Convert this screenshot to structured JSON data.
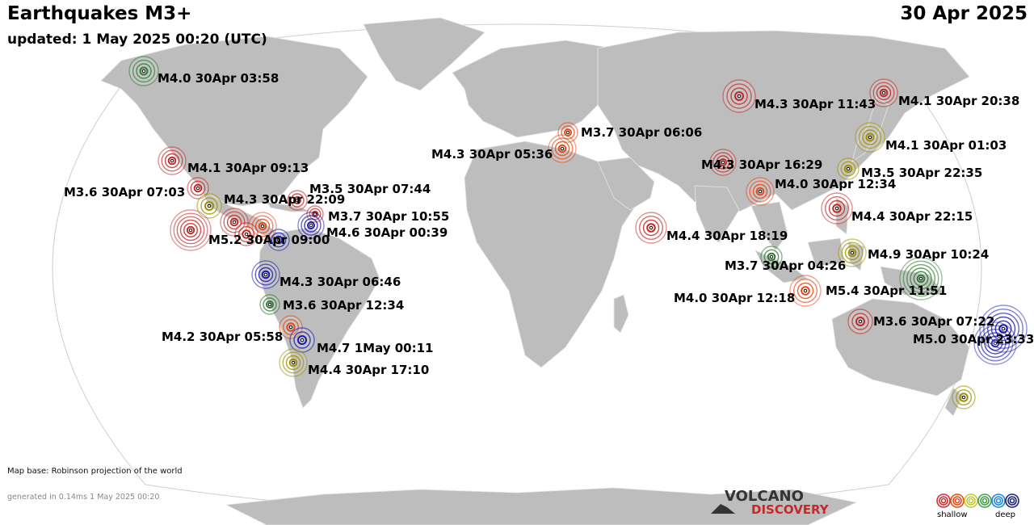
{
  "header": {
    "title": "Earthquakes M3+",
    "updated": "updated:  1 May 2025 00:20 (UTC)",
    "date": "30 Apr 2025"
  },
  "footer": {
    "map_base_note": "Map base: Robinson projection of the world",
    "generated": "generated in 0.14ms  1 May 2025 00:20"
  },
  "logo": {
    "line1": "VOLCANO",
    "line2": "DISCOVERY"
  },
  "legend": {
    "shallow": "shallow",
    "deep": "deep",
    "depth_colors": [
      "#d32f2f",
      "#e64a19",
      "#c0ca33",
      "#43a047",
      "#1e88e5",
      "#1a237e"
    ]
  },
  "colors": {
    "ocean": "#ffffff",
    "land": "#bdbdbd",
    "border": "#e8e8e8",
    "shallow": "#d32f2f",
    "intermediate": "#b8a000",
    "mid": "#43a047",
    "deep": "#1a1ab0"
  },
  "quakes": [
    {
      "label": "M4.0 30Apr 03:58",
      "color": "#2e7d32"
    },
    {
      "label": "M4.1 30Apr 09:13",
      "color": "#c62828"
    },
    {
      "label": "M3.6 30Apr 07:03",
      "color": "#c62828"
    },
    {
      "label": "M4.3 30Apr 22:09",
      "color": "#a09000"
    },
    {
      "label": "M3.5 30Apr 07:44",
      "color": "#c62828"
    },
    {
      "label": "M3.7 30Apr 10:55",
      "color": "#c62828"
    },
    {
      "label": "M4.6 30Apr 00:39",
      "color": "#1a1ab0"
    },
    {
      "label": "M5.2 30Apr 09:00",
      "color": "#1a1ab0"
    },
    {
      "label": "M4.3 30Apr 06:46",
      "color": "#1a1ab0"
    },
    {
      "label": "M3.6 30Apr 12:34",
      "color": "#2e7d32"
    },
    {
      "label": "M4.2 30Apr 05:58",
      "color": "#e64a19"
    },
    {
      "label": "M4.7  1May 00:11",
      "color": "#1a1ab0"
    },
    {
      "label": "M4.4 30Apr 17:10",
      "color": "#a09000"
    },
    {
      "label": "M3.7 30Apr 06:06",
      "color": "#e64a19"
    },
    {
      "label": "M4.3 30Apr 05:36",
      "color": "#e64a19"
    },
    {
      "label": "M4.3 30Apr 11:43",
      "color": "#c62828"
    },
    {
      "label": "M4.1 30Apr 20:38",
      "color": "#c62828"
    },
    {
      "label": "M4.1 30Apr 01:03",
      "color": "#a09000"
    },
    {
      "label": "M3.5 30Apr 22:35",
      "color": "#a09000"
    },
    {
      "label": "M4.3 30Apr 16:29",
      "color": "#c62828"
    },
    {
      "label": "M4.0 30Apr 12:34",
      "color": "#e64a19"
    },
    {
      "label": "M4.4 30Apr 22:15",
      "color": "#c62828"
    },
    {
      "label": "M4.4 30Apr 18:19",
      "color": "#c62828"
    },
    {
      "label": "M4.9 30Apr 10:24",
      "color": "#a09000"
    },
    {
      "label": "M3.7 30Apr 04:26",
      "color": "#2e7d32"
    },
    {
      "label": "M5.4 30Apr 11:51",
      "color": "#2e7d32"
    },
    {
      "label": "M4.0 30Apr 12:18",
      "color": "#e64a19"
    },
    {
      "label": "M3.6 30Apr 07:22",
      "color": "#c62828"
    },
    {
      "label": "M5.0 30Apr 23:33",
      "color": "#1a1ab0"
    }
  ],
  "extra_markers": [
    {
      "color": "#c62828"
    },
    {
      "color": "#c62828"
    },
    {
      "color": "#e64a19"
    },
    {
      "color": "#c62828"
    },
    {
      "color": "#1a1ab0"
    },
    {
      "color": "#a09000"
    }
  ]
}
